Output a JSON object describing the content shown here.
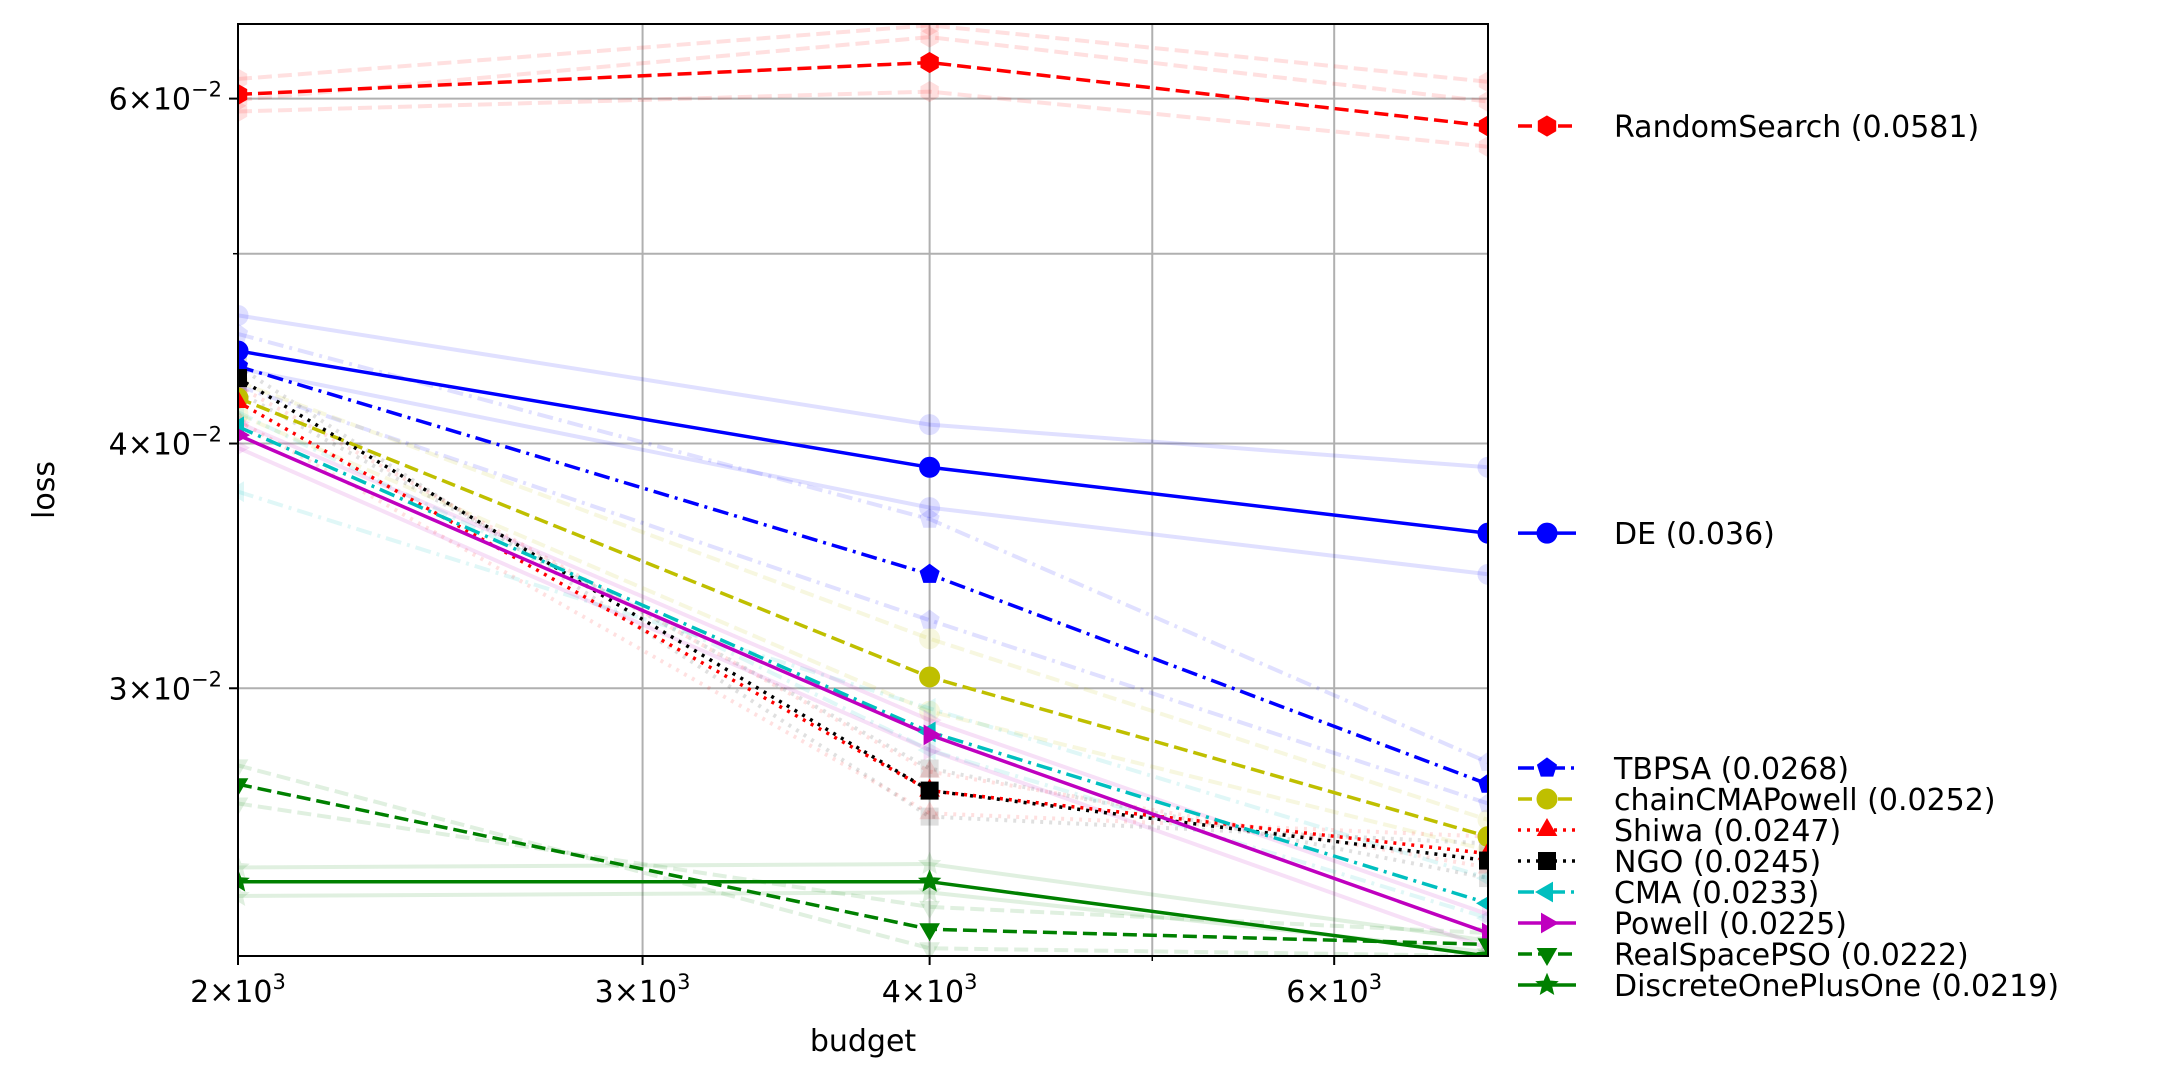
{
  "chart_data": {
    "type": "line",
    "xlabel": "budget",
    "ylabel": "loss",
    "x_scale": "log",
    "y_scale": "log",
    "xlim": [
      2000,
      7000
    ],
    "ylim": [
      0.0219,
      0.0655
    ],
    "grid": true,
    "x": [
      2000,
      4000,
      7000
    ],
    "x_ticks": [
      {
        "value": 2000,
        "mant": "2",
        "exp": "3"
      },
      {
        "value": 3000,
        "mant": "3",
        "exp": "3"
      },
      {
        "value": 4000,
        "mant": "4",
        "exp": "3"
      },
      {
        "value": 6000,
        "mant": "6",
        "exp": "3"
      }
    ],
    "x_minor": [
      5000
    ],
    "y_ticks": [
      {
        "value": 0.03,
        "mant": "3",
        "exp": "−2"
      },
      {
        "value": 0.04,
        "mant": "4",
        "exp": "−2"
      },
      {
        "value": 0.06,
        "mant": "6",
        "exp": "−2"
      }
    ],
    "y_minor": [
      0.05
    ],
    "legend_position": "right-outside",
    "series": [
      {
        "name": "RandomSearch (0.0581)",
        "color": "#ff0000",
        "dash": "dashed",
        "marker": "hexagon",
        "values": [
          0.0603,
          0.0626,
          0.0581
        ],
        "legend_value": 0.0581
      },
      {
        "name": "DE (0.036)",
        "color": "#0000ff",
        "dash": "solid",
        "marker": "circle",
        "values": [
          0.0446,
          0.0389,
          0.036
        ],
        "legend_value": 0.036
      },
      {
        "name": "TBPSA (0.0268)",
        "color": "#0000ff",
        "dash": "dashdot",
        "marker": "pentagon",
        "values": [
          0.0438,
          0.0343,
          0.0268
        ],
        "legend_value": 0.0268
      },
      {
        "name": "chainCMAPowell (0.0252)",
        "color": "#bfbf00",
        "dash": "dashed",
        "marker": "circle",
        "values": [
          0.0422,
          0.0304,
          0.0252
        ],
        "legend_value": 0.0252
      },
      {
        "name": "Shiwa (0.0247)",
        "color": "#ff0000",
        "dash": "dotted",
        "marker": "triangle-up",
        "values": [
          0.042,
          0.0266,
          0.0247
        ],
        "legend_value": 0.0247
      },
      {
        "name": "NGO (0.0245)",
        "color": "#000000",
        "dash": "dotted",
        "marker": "square",
        "values": [
          0.0432,
          0.0266,
          0.0245
        ],
        "legend_value": 0.0245
      },
      {
        "name": "CMA (0.0233)",
        "color": "#00bfbf",
        "dash": "dashdot",
        "marker": "triangle-left",
        "values": [
          0.0408,
          0.0285,
          0.0233
        ],
        "legend_value": 0.0233
      },
      {
        "name": "Powell (0.0225)",
        "color": "#bf00bf",
        "dash": "solid",
        "marker": "triangle-right",
        "values": [
          0.0404,
          0.0284,
          0.0225
        ],
        "legend_value": 0.0225
      },
      {
        "name": "RealSpacePSO (0.0222)",
        "color": "#008000",
        "dash": "dashed",
        "marker": "triangle-down",
        "values": [
          0.0268,
          0.0226,
          0.0222
        ],
        "legend_value": 0.0222
      },
      {
        "name": "DiscreteOnePlusOne (0.0219)",
        "color": "#008000",
        "dash": "solid",
        "marker": "star",
        "values": [
          0.0239,
          0.0239,
          0.0219
        ],
        "legend_value": 0.0219
      }
    ],
    "faint_series": [
      {
        "color": "#ff0000",
        "dash": "dashed",
        "marker": "hexagon",
        "values": [
          0.0614,
          0.0654,
          0.0612
        ]
      },
      {
        "color": "#ff0000",
        "dash": "dashed",
        "marker": "hexagon",
        "values": [
          0.0591,
          0.0605,
          0.0567
        ]
      },
      {
        "color": "#ff0000",
        "dash": "dashed",
        "marker": "hexagon",
        "values": [
          0.0599,
          0.0645,
          0.0598
        ]
      },
      {
        "color": "#0000ff",
        "dash": "solid",
        "marker": "circle",
        "values": [
          0.0465,
          0.0409,
          0.0389
        ]
      },
      {
        "color": "#0000ff",
        "dash": "solid",
        "marker": "circle",
        "values": [
          0.0437,
          0.0371,
          0.0343
        ]
      },
      {
        "color": "#0000ff",
        "dash": "dashdot",
        "marker": "pentagon",
        "values": [
          0.0455,
          0.0366,
          0.0275
        ]
      },
      {
        "color": "#0000ff",
        "dash": "dashdot",
        "marker": "pentagon",
        "values": [
          0.0428,
          0.0325,
          0.0262
        ]
      },
      {
        "color": "#bfbf00",
        "dash": "dashed",
        "marker": "circle",
        "values": [
          0.043,
          0.0318,
          0.0257
        ]
      },
      {
        "color": "#bfbf00",
        "dash": "dashed",
        "marker": "circle",
        "values": [
          0.0414,
          0.0292,
          0.0248
        ]
      },
      {
        "color": "#ff0000",
        "dash": "dotted",
        "marker": "triangle-up",
        "values": [
          0.0411,
          0.0259,
          0.0252
        ]
      },
      {
        "color": "#ff0000",
        "dash": "dotted",
        "marker": "triangle-up",
        "values": [
          0.0428,
          0.0272,
          0.0243
        ]
      },
      {
        "color": "#000000",
        "dash": "dotted",
        "marker": "square",
        "values": [
          0.0438,
          0.0258,
          0.025
        ]
      },
      {
        "color": "#000000",
        "dash": "dotted",
        "marker": "square",
        "values": [
          0.0425,
          0.0273,
          0.024
        ]
      },
      {
        "color": "#00bfbf",
        "dash": "dashdot",
        "marker": "triangle-left",
        "values": [
          0.0378,
          0.0293,
          0.024
        ]
      },
      {
        "color": "#00bfbf",
        "dash": "dashdot",
        "marker": "triangle-left",
        "values": [
          0.0415,
          0.0279,
          0.0229
        ]
      },
      {
        "color": "#bf00bf",
        "dash": "solid",
        "marker": "triangle-right",
        "values": [
          0.041,
          0.0289,
          0.023
        ]
      },
      {
        "color": "#bf00bf",
        "dash": "solid",
        "marker": "triangle-right",
        "values": [
          0.0398,
          0.0279,
          0.0221
        ]
      },
      {
        "color": "#008000",
        "dash": "dashed",
        "marker": "triangle-down",
        "values": [
          0.0274,
          0.0221,
          0.0219
        ]
      },
      {
        "color": "#008000",
        "dash": "dashed",
        "marker": "triangle-down",
        "values": [
          0.0262,
          0.0232,
          0.0225
        ]
      },
      {
        "color": "#008000",
        "dash": "solid",
        "marker": "star",
        "values": [
          0.0243,
          0.0244,
          0.0223
        ]
      },
      {
        "color": "#008000",
        "dash": "solid",
        "marker": "star",
        "values": [
          0.0235,
          0.0236,
          0.022
        ]
      }
    ]
  }
}
